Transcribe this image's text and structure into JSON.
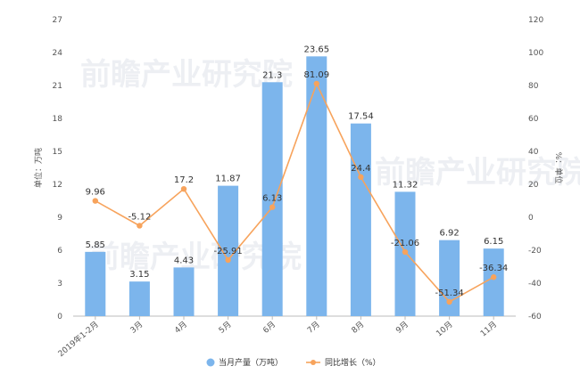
{
  "chart_data": {
    "type": "bar+line",
    "categories": [
      "2019年1-2月",
      "3月",
      "4月",
      "5月",
      "6月",
      "7月",
      "8月",
      "9月",
      "10月",
      "11月"
    ],
    "series": [
      {
        "name": "当月产量（万吨）",
        "type": "bar",
        "axis": "left",
        "color": "#7cb5ec",
        "values": [
          5.85,
          3.15,
          4.43,
          11.87,
          21.3,
          23.65,
          17.54,
          11.32,
          6.92,
          6.15
        ],
        "labels": [
          "5.85",
          "3.15",
          "4.43",
          "11.87",
          "21.3",
          "23.65",
          "17.54",
          "11.32",
          "6.92",
          "6.15"
        ]
      },
      {
        "name": "同比增长（%）",
        "type": "line",
        "axis": "right",
        "color": "#f7a35c",
        "values": [
          9.96,
          -5.12,
          17.2,
          -25.91,
          6.13,
          81.09,
          24.4,
          -21.06,
          -51.34,
          -36.34
        ],
        "labels": [
          "9.96",
          "-5.12",
          "17.2",
          "-25.91",
          "6.13",
          "81.09",
          "24.4",
          "-21.06",
          "-51.34",
          "-36.34"
        ]
      }
    ],
    "y_left": {
      "label": "单位：万吨",
      "min": 0,
      "max": 27,
      "ticks": [
        0,
        3,
        6,
        9,
        12,
        15,
        18,
        21,
        24,
        27
      ]
    },
    "y_right": {
      "label": "%：单位",
      "min": -60,
      "max": 120,
      "ticks": [
        -60,
        -40,
        -20,
        0,
        20,
        40,
        60,
        80,
        100,
        120
      ]
    },
    "grid": false,
    "legend": "bottom-center"
  },
  "watermark": {
    "text": "前瞻产业研究院"
  }
}
